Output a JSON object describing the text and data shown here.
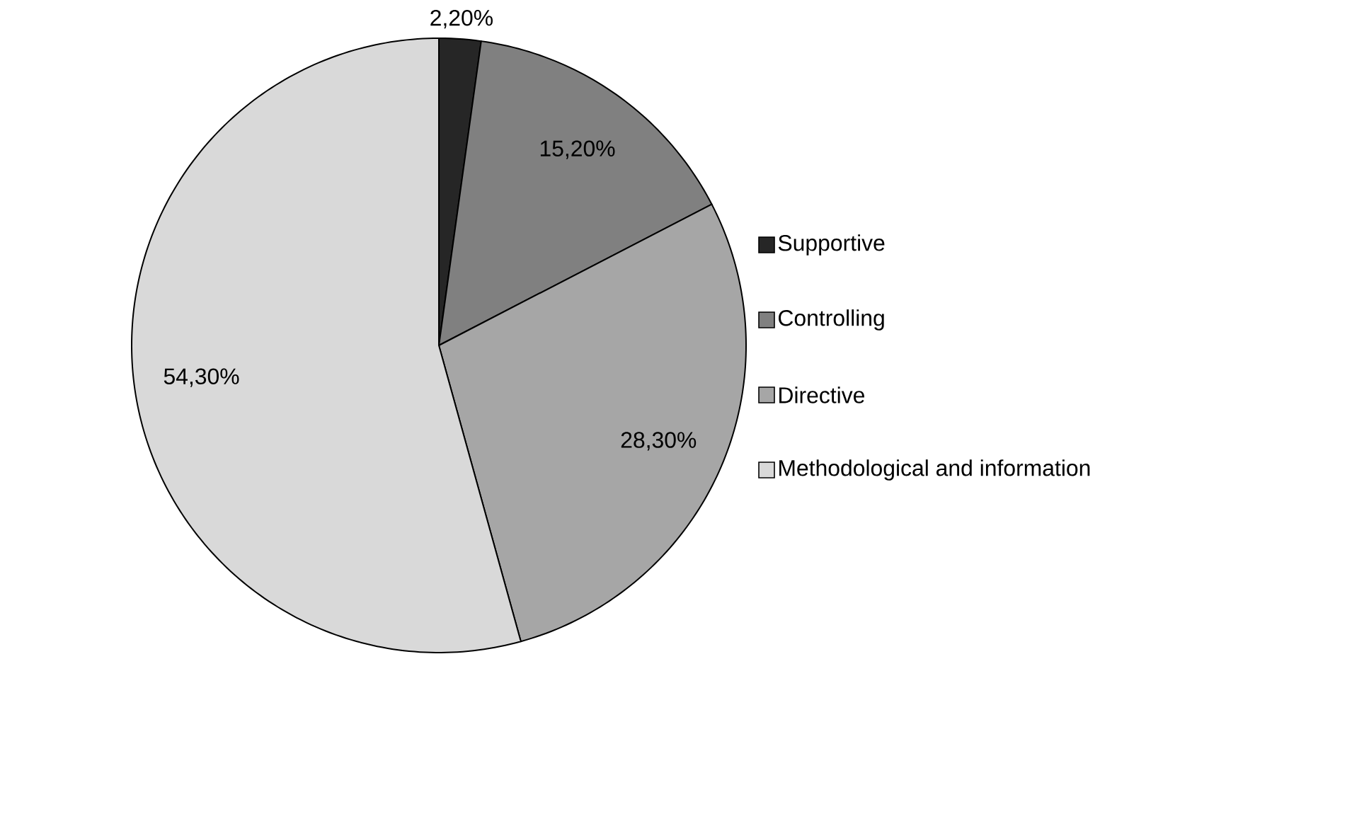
{
  "chart_data": {
    "type": "pie",
    "categories": [
      "Supportive",
      "Controlling",
      "Directive",
      "Methodological and information"
    ],
    "values": [
      2.2,
      15.2,
      28.3,
      54.3
    ],
    "value_labels": [
      "2,20%",
      "15,20%",
      "28,30%",
      "54,30%"
    ],
    "colors": [
      "#262626",
      "#808080",
      "#a6a6a6",
      "#d9d9d9"
    ],
    "legend": "right"
  }
}
